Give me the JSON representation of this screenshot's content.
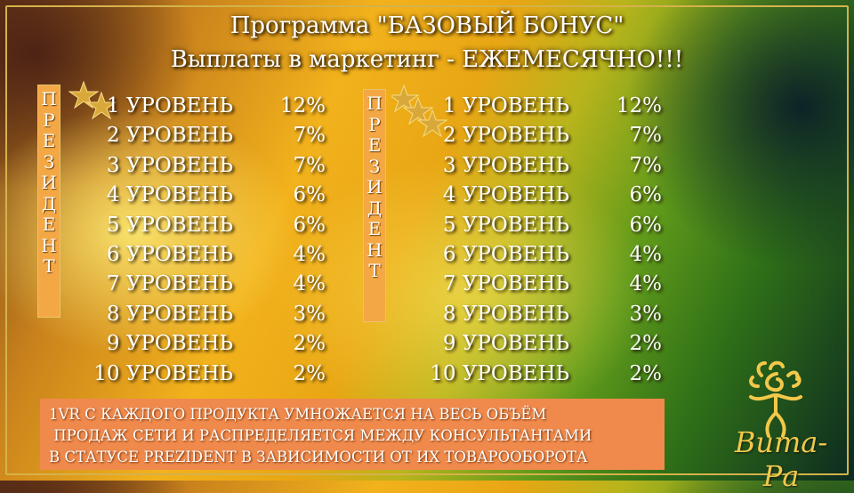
{
  "title_line1": "Программа \"БАЗОВЫЙ БОНУС\"",
  "title_line2": "Выплаты в маркетинг - ЕЖЕМЕСЯЧНО!!!",
  "left_block": {
    "vertical_letters": [
      "П",
      "Р",
      "Е",
      "З",
      "И",
      "Д",
      "Е",
      "Н",
      "Т"
    ],
    "star_count": 2,
    "rows": [
      {
        "level": "1 УРОВЕНЬ",
        "pct": "12%"
      },
      {
        "level": "2 УРОВЕНЬ",
        "pct": "7%"
      },
      {
        "level": "3 УРОВЕНЬ",
        "pct": "7%"
      },
      {
        "level": "4 УРОВЕНЬ",
        "pct": "6%"
      },
      {
        "level": "5 УРОВЕНЬ",
        "pct": "6%"
      },
      {
        "level": "6 УРОВЕНЬ",
        "pct": "4%"
      },
      {
        "level": "7 УРОВЕНЬ",
        "pct": "4%"
      },
      {
        "level": "8 УРОВЕНЬ",
        "pct": "3%"
      },
      {
        "level": "9 УРОВЕНЬ",
        "pct": "2%"
      },
      {
        "level": "10 УРОВЕНЬ",
        "pct": "2%"
      }
    ]
  },
  "right_block": {
    "vertical_letters": [
      "П",
      "Р",
      "Е",
      "З",
      "И",
      "Д",
      "Е",
      "Н",
      "Т"
    ],
    "star_count": 3,
    "rows": [
      {
        "level": "1 УРОВЕНЬ",
        "pct": "12%"
      },
      {
        "level": "2 УРОВЕНЬ",
        "pct": "7%"
      },
      {
        "level": "3 УРОВЕНЬ",
        "pct": "7%"
      },
      {
        "level": "4 УРОВЕНЬ",
        "pct": "6%"
      },
      {
        "level": "5 УРОВЕНЬ",
        "pct": "6%"
      },
      {
        "level": "6 УРОВЕНЬ",
        "pct": "4%"
      },
      {
        "level": "7 УРОВЕНЬ",
        "pct": "4%"
      },
      {
        "level": "8 УРОВЕНЬ",
        "pct": "3%"
      },
      {
        "level": "9 УРОВЕНЬ",
        "pct": "2%"
      },
      {
        "level": "10 УРОВЕНЬ",
        "pct": "2%"
      }
    ]
  },
  "note_lines": [
    "1VR С КАЖДОГО ПРОДУКТА УМНОЖАЕТСЯ НА ВЕСЬ ОБЪЁМ",
    " ПРОДАЖ СЕТИ И РАСПРЕДЕЛЯЕТСЯ МЕЖДУ КОНСУЛЬТАНТАМИ",
    "В СТАТУСЕ PREZIDENT В ЗАВИСИМОСТИ ОТ ИХ ТОВАРООБОРОТА"
  ],
  "logo_text": "Вита-Ра",
  "logo_icon": "sun-figure-logo-icon",
  "star_icon": "gold-star-icon",
  "colors": {
    "box": "#f3a845",
    "note_bg": "#f08a4c",
    "star": "#d9a83a",
    "logo": "#f2c84a"
  }
}
